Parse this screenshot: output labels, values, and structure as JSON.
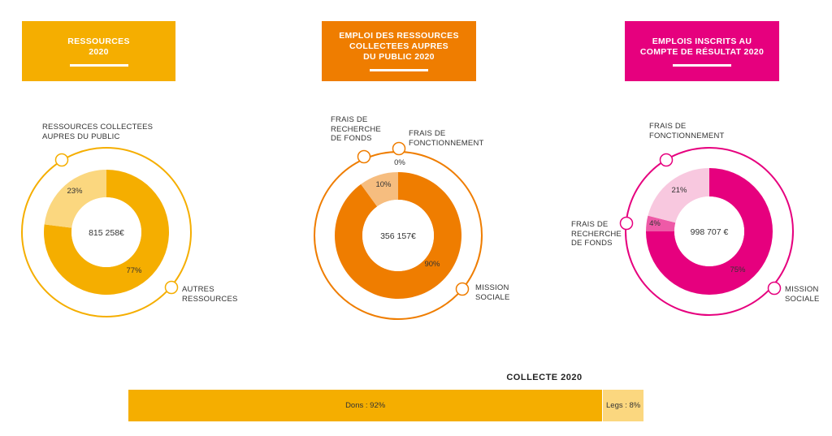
{
  "colors": {
    "ressources": "#F5AE00",
    "ressources_light": "#FBD77F",
    "emploi": "#EF7D00",
    "emploi_light": "#F6BD7F",
    "compte": "#E6007E",
    "compte_mid": "#EE5AA7",
    "compte_light": "#F8C8DF"
  },
  "headers": {
    "ressources": "RESSOURCES\n2020",
    "emploi": "EMPLOI DES RESSOURCES\nCOLLECTEES AUPRES\nDU PUBLIC 2020",
    "compte": "EMPLOIS INSCRITS AU\nCOMPTE DE RÉSULTAT 2020"
  },
  "chart_data": [
    {
      "type": "pie",
      "title": "RESSOURCES 2020",
      "total_label": "815 258€",
      "slices": [
        {
          "name": "AUTRES RESSOURCES",
          "name_display": "AUTRES\nRESSOURCES",
          "value": 77,
          "label": "77%"
        },
        {
          "name": "RESSOURCES COLLECTEES AUPRES DU PUBLIC",
          "name_display": "RESSOURCES COLLECTEES\nAUPRES DU PUBLIC",
          "value": 23,
          "label": "23%"
        }
      ]
    },
    {
      "type": "pie",
      "title": "EMPLOI DES RESSOURCES COLLECTEES AUPRES DU PUBLIC 2020",
      "total_label": "356 157€",
      "slices": [
        {
          "name": "MISSION SOCIALE",
          "name_display": "MISSION\nSOCIALE",
          "value": 90,
          "label": "90%"
        },
        {
          "name": "FRAIS DE RECHERCHE DE FONDS",
          "name_display": "FRAIS DE\nRECHERCHE\nDE FONDS",
          "value": 10,
          "label": "10%"
        },
        {
          "name": "FRAIS DE FONCTIONNEMENT",
          "name_display": "FRAIS DE\nFONCTIONNEMENT",
          "value": 0,
          "label": "0%"
        }
      ]
    },
    {
      "type": "pie",
      "title": "EMPLOIS INSCRITS AU COMPTE DE RÉSULTAT 2020",
      "total_label": "998 707 €",
      "slices": [
        {
          "name": "MISSION SOCIALE",
          "name_display": "MISSION\nSOCIALE",
          "value": 75,
          "label": "75%"
        },
        {
          "name": "FRAIS DE RECHERCHE DE FONDS",
          "name_display": "FRAIS DE\nRECHERCHE\nDE FONDS",
          "value": 4,
          "label": "4%"
        },
        {
          "name": "FRAIS DE FONCTIONNEMENT",
          "name_display": "FRAIS DE\nFONCTIONNEMENT",
          "value": 21,
          "label": "21%"
        }
      ]
    },
    {
      "type": "bar",
      "title": "COLLECTE 2020",
      "stacked": true,
      "orientation": "horizontal",
      "categories": [
        "Dons",
        "Legs"
      ],
      "values": [
        92,
        8
      ],
      "labels": [
        "Dons : 92%",
        "Legs : 8%"
      ]
    }
  ]
}
